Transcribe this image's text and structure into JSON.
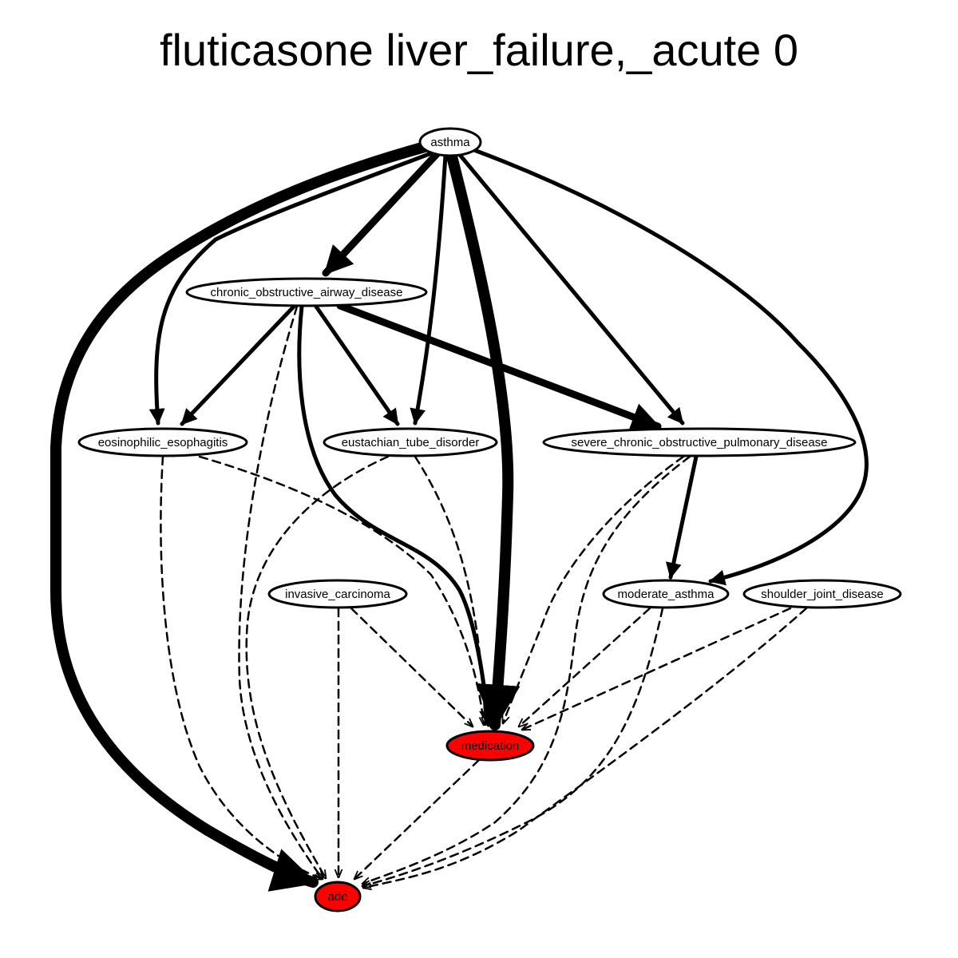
{
  "title": "fluticasone liver_failure,_acute 0",
  "colors": {
    "highlight": "#ff0000",
    "default_fill": "#ffffff",
    "stroke": "#000000"
  },
  "nodes": {
    "asthma": {
      "label": "asthma",
      "highlight": false
    },
    "copd_airway": {
      "label": "chronic_obstructive_airway_disease",
      "highlight": false
    },
    "eos_esoph": {
      "label": "eosinophilic_esophagitis",
      "highlight": false
    },
    "eust_tube": {
      "label": "eustachian_tube_disorder",
      "highlight": false
    },
    "severe_copd": {
      "label": "severe_chronic_obstructive_pulmonary_disease",
      "highlight": false
    },
    "inv_carcinoma": {
      "label": "invasive_carcinoma",
      "highlight": false
    },
    "mod_asthma": {
      "label": "moderate_asthma",
      "highlight": false
    },
    "shoulder": {
      "label": "shoulder_joint_disease",
      "highlight": false
    },
    "medication": {
      "label": "medication",
      "highlight": true
    },
    "ade": {
      "label": "ade",
      "highlight": true
    }
  },
  "edges": [
    {
      "from": "asthma",
      "to": "ade",
      "style": "solid",
      "weight": "heavy"
    },
    {
      "from": "asthma",
      "to": "copd_airway",
      "style": "solid",
      "weight": "medium"
    },
    {
      "from": "asthma",
      "to": "eos_esoph",
      "style": "solid",
      "weight": "light"
    },
    {
      "from": "asthma",
      "to": "eust_tube",
      "style": "solid",
      "weight": "light"
    },
    {
      "from": "asthma",
      "to": "medication",
      "style": "solid",
      "weight": "heavy"
    },
    {
      "from": "asthma",
      "to": "severe_copd",
      "style": "solid",
      "weight": "light"
    },
    {
      "from": "asthma",
      "to": "mod_asthma",
      "style": "solid",
      "weight": "light"
    },
    {
      "from": "copd_airway",
      "to": "eos_esoph",
      "style": "solid",
      "weight": "light"
    },
    {
      "from": "copd_airway",
      "to": "eust_tube",
      "style": "solid",
      "weight": "light"
    },
    {
      "from": "copd_airway",
      "to": "severe_copd",
      "style": "solid",
      "weight": "medium"
    },
    {
      "from": "copd_airway",
      "to": "medication",
      "style": "solid",
      "weight": "light"
    },
    {
      "from": "copd_airway",
      "to": "ade",
      "style": "dashed",
      "weight": "light"
    },
    {
      "from": "eos_esoph",
      "to": "medication",
      "style": "dashed",
      "weight": "light"
    },
    {
      "from": "eos_esoph",
      "to": "ade",
      "style": "dashed",
      "weight": "light"
    },
    {
      "from": "eust_tube",
      "to": "medication",
      "style": "dashed",
      "weight": "light"
    },
    {
      "from": "eust_tube",
      "to": "ade",
      "style": "dashed",
      "weight": "light"
    },
    {
      "from": "severe_copd",
      "to": "mod_asthma",
      "style": "solid",
      "weight": "light"
    },
    {
      "from": "severe_copd",
      "to": "medication",
      "style": "dashed",
      "weight": "light"
    },
    {
      "from": "severe_copd",
      "to": "ade",
      "style": "dashed",
      "weight": "light"
    },
    {
      "from": "inv_carcinoma",
      "to": "medication",
      "style": "dashed",
      "weight": "light"
    },
    {
      "from": "inv_carcinoma",
      "to": "ade",
      "style": "dashed",
      "weight": "light"
    },
    {
      "from": "mod_asthma",
      "to": "medication",
      "style": "dashed",
      "weight": "light"
    },
    {
      "from": "mod_asthma",
      "to": "ade",
      "style": "dashed",
      "weight": "light"
    },
    {
      "from": "shoulder",
      "to": "medication",
      "style": "dashed",
      "weight": "light"
    },
    {
      "from": "shoulder",
      "to": "ade",
      "style": "dashed",
      "weight": "light"
    },
    {
      "from": "medication",
      "to": "ade",
      "style": "dashed",
      "weight": "light"
    }
  ]
}
